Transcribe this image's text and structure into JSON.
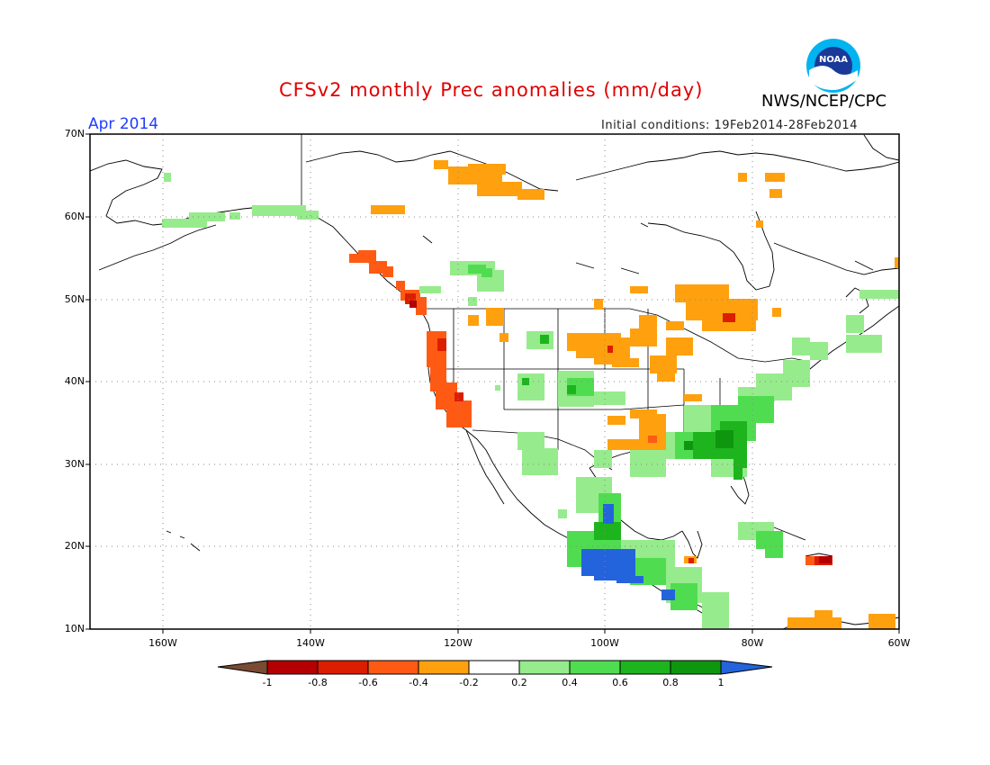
{
  "header": {
    "title": "CFSv2 monthly Prec anomalies (mm/day)",
    "month": "Apr 2014",
    "agency": "NWS/NCEP/CPC",
    "initial_conditions": "Initial conditions: 19Feb2014-28Feb2014",
    "logo_text": "NOAA"
  },
  "axes": {
    "lat_labels": [
      "70N",
      "60N",
      "50N",
      "40N",
      "30N",
      "20N",
      "10N"
    ],
    "lon_labels": [
      "160W",
      "140W",
      "120W",
      "100W",
      "80W",
      "60W"
    ]
  },
  "colorbar": {
    "labels": [
      "-1",
      "-0.8",
      "-0.6",
      "-0.4",
      "-0.2",
      "0.2",
      "0.4",
      "0.6",
      "0.8",
      "1"
    ],
    "colors": {
      "lt_-1": "#7a4a32",
      "-1_-0.8": "#b40000",
      "-0.8_-0.6": "#dc1e00",
      "-0.6_-0.4": "#ff5a14",
      "-0.4_-0.2": "#ffa00f",
      "-0.2_0.2": "#ffffff",
      "0.2_0.4": "#96eb8c",
      "0.4_0.6": "#50dc50",
      "0.6_0.8": "#1eb41e",
      "0.8_1": "#0f960f",
      "gt_1": "#2364dc"
    }
  }
}
